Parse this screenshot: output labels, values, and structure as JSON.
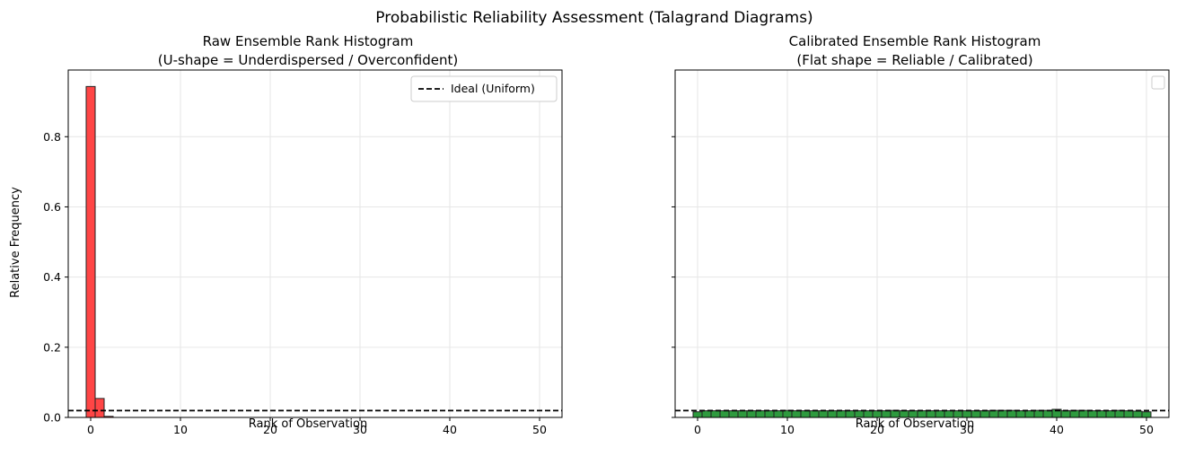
{
  "suptitle": "Probabilistic Reliability Assessment (Talagrand Diagrams)",
  "colors": {
    "raw_bar": "#ff4545",
    "calibrated_bar": "#2e9a3e",
    "edge": "#222222",
    "ideal_line": "#000000",
    "grid": "#e6e6e6"
  },
  "chart_data": [
    {
      "type": "bar",
      "title_line1": "Raw Ensemble Rank Histogram",
      "title_line2": "(U-shape = Underdispersed / Overconfident)",
      "xlabel": "Rank of Observation",
      "ylabel": "Relative Frequency",
      "xlim": [
        -2.5,
        52.5
      ],
      "ylim": [
        0,
        0.99
      ],
      "xticks": [
        0,
        10,
        20,
        30,
        40,
        50
      ],
      "yticks": [
        0.0,
        0.2,
        0.4,
        0.6,
        0.8
      ],
      "ytick_labels": [
        "0.0",
        "0.2",
        "0.4",
        "0.6",
        "0.8"
      ],
      "grid": true,
      "bar_color_key": "raw_bar",
      "values": [
        0.943,
        0.054,
        0.003,
        0,
        0,
        0,
        0,
        0,
        0,
        0,
        0,
        0,
        0,
        0,
        0,
        0,
        0,
        0,
        0,
        0,
        0,
        0,
        0,
        0,
        0,
        0,
        0,
        0,
        0,
        0,
        0,
        0,
        0,
        0,
        0,
        0,
        0,
        0,
        0,
        0,
        0,
        0,
        0,
        0,
        0,
        0,
        0,
        0,
        0,
        0,
        0
      ],
      "ideal": 0.0196,
      "legend": {
        "position": "top-right",
        "entries": [
          "Ideal (Uniform)"
        ]
      }
    },
    {
      "type": "bar",
      "title_line1": "Calibrated Ensemble Rank Histogram",
      "title_line2": "(Flat shape = Reliable / Calibrated)",
      "xlabel": "Rank of Observation",
      "ylabel": "",
      "xlim": [
        -2.5,
        52.5
      ],
      "ylim": [
        0,
        0.99
      ],
      "xticks": [
        0,
        10,
        20,
        30,
        40,
        50
      ],
      "yticks": [
        0.0,
        0.2,
        0.4,
        0.6,
        0.8
      ],
      "ytick_labels": [
        "",
        "",
        "",
        "",
        ""
      ],
      "grid": true,
      "bar_color_key": "calibrated_bar",
      "values": [
        0.016,
        0.019,
        0.019,
        0.019,
        0.019,
        0.019,
        0.019,
        0.019,
        0.019,
        0.019,
        0.02,
        0.019,
        0.019,
        0.019,
        0.019,
        0.019,
        0.019,
        0.019,
        0.019,
        0.019,
        0.019,
        0.019,
        0.02,
        0.019,
        0.019,
        0.019,
        0.019,
        0.019,
        0.019,
        0.019,
        0.019,
        0.019,
        0.019,
        0.02,
        0.02,
        0.02,
        0.019,
        0.019,
        0.02,
        0.02,
        0.023,
        0.019,
        0.02,
        0.02,
        0.019,
        0.019,
        0.019,
        0.02,
        0.019,
        0.018,
        0.016
      ],
      "ideal": 0.0196,
      "legend": {
        "position": "top-right",
        "entries": []
      }
    }
  ]
}
